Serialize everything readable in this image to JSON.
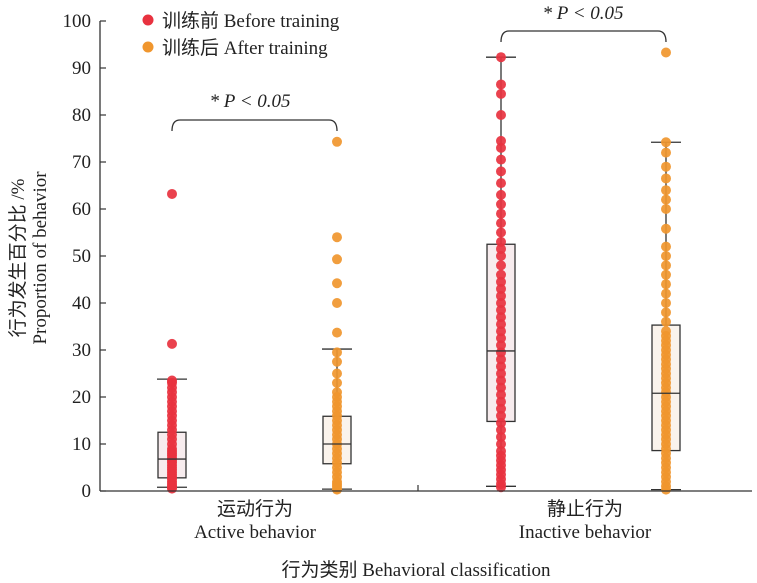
{
  "chart_data": {
    "type": "boxplot-with-points",
    "ylabel_zh": "行为发生百分比 /%",
    "ylabel_en": "Proportion of behavior",
    "xlabel": "行为类别 Behavioral classification",
    "ylim": [
      0,
      100
    ],
    "yticks": [
      0,
      10,
      20,
      30,
      40,
      50,
      60,
      70,
      80,
      90,
      100
    ],
    "legend": {
      "placement": "top-left",
      "items": [
        {
          "label": "训练前 Before training",
          "color": "#e8323f"
        },
        {
          "label": "训练后 After training",
          "color": "#f0962e"
        }
      ]
    },
    "groups": [
      {
        "label_zh": "运动行为",
        "label_en": "Active behavior",
        "significance": "* P < 0.05",
        "boxes": [
          {
            "series": 0,
            "min": 0.8,
            "q1": 2.8,
            "median": 6.8,
            "q3": 12.5,
            "max": 23.8,
            "points": [
              0.5,
              0.8,
              1,
              1.5,
              2,
              2.5,
              3,
              3.5,
              4,
              4.5,
              5,
              5.5,
              6,
              6.5,
              7,
              7.5,
              8,
              8.5,
              9,
              10,
              11,
              12,
              13,
              14,
              15,
              16,
              17,
              18,
              19,
              20,
              21,
              22,
              23,
              23.5,
              31.3,
              63.2
            ]
          },
          {
            "series": 1,
            "min": 0.4,
            "q1": 5.8,
            "median": 10,
            "q3": 15.9,
            "max": 30.2,
            "points": [
              0.3,
              0.5,
              1,
              1.5,
              2,
              3,
              4,
              5,
              6,
              7,
              8,
              9,
              10,
              11,
              12,
              13,
              14,
              15,
              16,
              17,
              18,
              19,
              20,
              21,
              23,
              25,
              27.5,
              29.5,
              33.7,
              40,
              44.2,
              49.3,
              54,
              74.3
            ]
          }
        ]
      },
      {
        "label_zh": "静止行为",
        "label_en": "Inactive behavior",
        "significance": "* P < 0.05",
        "boxes": [
          {
            "series": 0,
            "min": 1,
            "q1": 14.8,
            "median": 29.8,
            "q3": 52.5,
            "max": 92.3,
            "points": [
              0.8,
              1.5,
              2.5,
              3.5,
              4.5,
              5.5,
              6.5,
              7.5,
              8.5,
              10,
              11.5,
              13,
              14.5,
              16,
              17.5,
              19,
              20.5,
              22,
              23.5,
              25,
              26.5,
              28,
              29.5,
              31,
              32.5,
              34,
              35.5,
              37,
              38.5,
              40,
              41.5,
              43,
              44.5,
              46,
              48,
              50,
              51.5,
              53,
              55,
              57,
              59,
              61,
              63,
              65.5,
              68,
              70.5,
              73,
              74.5,
              80,
              84.5,
              86.5,
              92.3
            ]
          },
          {
            "series": 1,
            "min": 0.3,
            "q1": 8.6,
            "median": 20.8,
            "q3": 35.3,
            "max": 74.2,
            "points": [
              0.3,
              1,
              2,
              3,
              4,
              5,
              6,
              7,
              8,
              9,
              10,
              11,
              12,
              13,
              14,
              15,
              16,
              17,
              18,
              19,
              20,
              21,
              22,
              23,
              24,
              25,
              26,
              27,
              28,
              29,
              30,
              31,
              32,
              33,
              34,
              36,
              38,
              40,
              42,
              44,
              46,
              48,
              50,
              52,
              55.8,
              60,
              62,
              64,
              66.5,
              69,
              72,
              74.2,
              93.3
            ]
          }
        ]
      }
    ]
  }
}
